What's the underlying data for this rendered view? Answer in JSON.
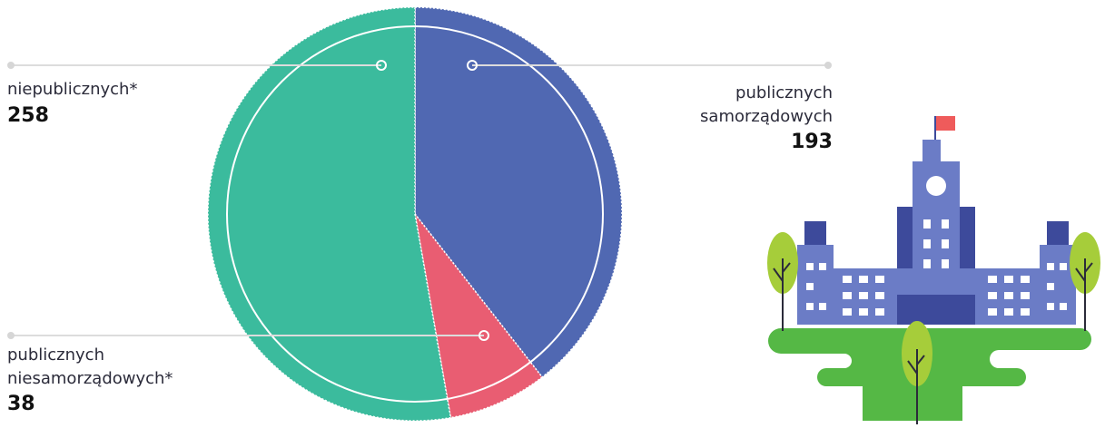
{
  "chart_data": {
    "type": "pie",
    "categories": [
      "publicznych samorządowych",
      "publicznych niesamorządowych*",
      "niepublicznych*"
    ],
    "values": [
      193,
      38,
      258
    ],
    "colors": [
      "#5068b2",
      "#e95d72",
      "#3bbb9d"
    ]
  }
}
